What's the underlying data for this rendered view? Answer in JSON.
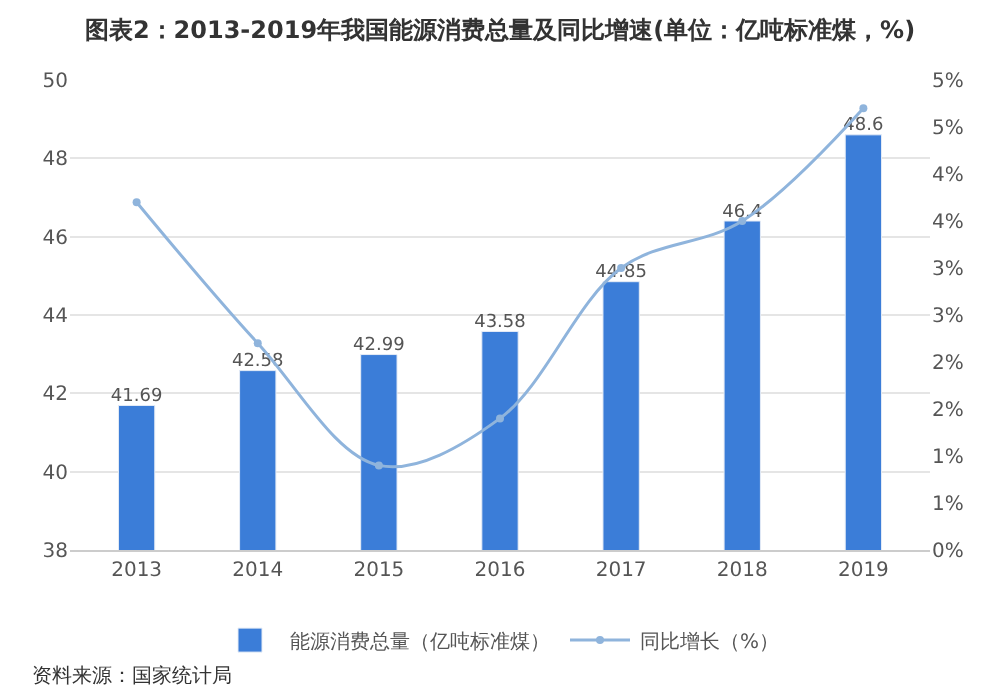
{
  "chart_data": {
    "type": "bar",
    "title": "图表2：2013-2019年我国能源消费总量及同比增速(单位：亿吨标准煤，%)",
    "categories": [
      "2013",
      "2014",
      "2015",
      "2016",
      "2017",
      "2018",
      "2019"
    ],
    "series": [
      {
        "name": "能源消费总量（亿吨标准煤）",
        "color": "#3b7dd8",
        "values": [
          41.69,
          42.58,
          42.99,
          43.58,
          44.85,
          46.4,
          48.6
        ],
        "value_labels": [
          "41.69",
          "42.58",
          "42.99",
          "43.58",
          "44.85",
          "46.4",
          "48.6"
        ]
      },
      {
        "name": "同比增长（%）",
        "type": "line",
        "axis": "y2",
        "color": "#8fb4dc",
        "marker": "circle",
        "values": [
          3.7,
          2.2,
          0.9,
          1.4,
          3.0,
          3.5,
          4.7
        ]
      }
    ],
    "ylim": [
      38,
      50
    ],
    "yticks": [
      38,
      40,
      42,
      44,
      46,
      48,
      50
    ],
    "y2lim": [
      0,
      5
    ],
    "y2ticks": [
      {
        "value": 0,
        "label": "0%"
      },
      {
        "value": 0.5,
        "label": "1%"
      },
      {
        "value": 1,
        "label": "1%"
      },
      {
        "value": 1.5,
        "label": "2%"
      },
      {
        "value": 2,
        "label": "2%"
      },
      {
        "value": 2.5,
        "label": "3%"
      },
      {
        "value": 3,
        "label": "3%"
      },
      {
        "value": 3.5,
        "label": "4%"
      },
      {
        "value": 4,
        "label": "4%"
      },
      {
        "value": 4.5,
        "label": "5%"
      },
      {
        "value": 5,
        "label": "5%"
      }
    ],
    "grid": "y",
    "legend": "bottom",
    "annotations": [
      "资料来源：国家统计局"
    ]
  }
}
